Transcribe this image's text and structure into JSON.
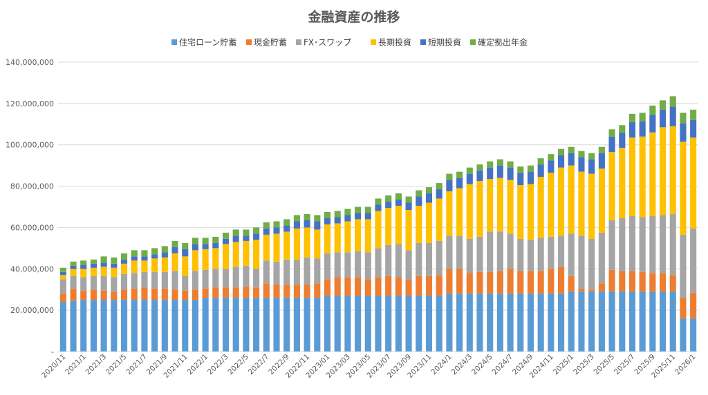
{
  "chart_data": {
    "type": "bar",
    "stacked": true,
    "title": "金融資産の推移",
    "xlabel": "",
    "ylabel": "",
    "ylim": [
      0,
      140000000
    ],
    "yticks": [
      0,
      20000000,
      40000000,
      60000000,
      80000000,
      100000000,
      120000000,
      140000000
    ],
    "ytick_labels": [
      "-",
      "20,000,000",
      "40,000,000",
      "60,000,000",
      "80,000,000",
      "100,000,000",
      "120,000,000",
      "140,000,000"
    ],
    "grid": true,
    "legend_position": "top",
    "categories": [
      "2020/11",
      "2020/12",
      "2021/1",
      "2021/2",
      "2021/3",
      "2021/4",
      "2021/5",
      "2021/6",
      "2021/7",
      "2021/8",
      "2021/9",
      "2021/10",
      "2021/11",
      "2021/12",
      "2022/1",
      "2022/2",
      "2022/3",
      "2022/4",
      "2022/5",
      "2022/6",
      "2022/7",
      "2022/8",
      "2022/9",
      "2022/10",
      "2022/11",
      "2022/12",
      "2023/01",
      "2023/02",
      "2023/03",
      "2023/04",
      "2023/05",
      "2023/06",
      "2023/07",
      "2023/08",
      "2023/09",
      "2023/10",
      "2023/11",
      "2023/12",
      "2024/1",
      "2024/2",
      "2024/3",
      "2024/4",
      "2024/5",
      "2024/6",
      "2024/7",
      "2024/8",
      "2024/9",
      "2024/10",
      "2024/11",
      "2024/12",
      "2025/1",
      "2025/2",
      "2025/3",
      "2025/4",
      "2025/5",
      "2025/6",
      "2025/7",
      "2025/8",
      "2025/9",
      "2025/10",
      "2025/11",
      "2025/12",
      "2026/1"
    ],
    "series": [
      {
        "name": "住宅ローン貯蓄",
        "color": "#5b9bd5",
        "values": [
          24,
          24.5,
          25,
          25,
          25,
          25,
          25,
          25,
          25,
          25,
          25,
          25,
          25,
          25,
          26,
          26,
          26,
          26,
          26,
          26,
          26,
          26,
          26,
          26,
          26,
          26,
          27,
          27,
          27,
          27,
          27,
          27,
          27,
          27,
          27,
          27,
          27,
          27,
          28,
          28,
          28,
          28,
          28,
          28,
          28,
          28,
          28,
          28,
          28,
          28,
          29,
          29,
          29,
          29,
          29,
          29,
          29,
          29,
          29,
          29,
          29,
          16,
          16
        ]
      },
      {
        "name": "現金貯蓄",
        "color": "#ed7d31",
        "values": [
          4,
          6,
          4.5,
          5,
          4.5,
          4,
          5,
          5.5,
          6,
          5.5,
          5.5,
          5,
          4.5,
          5,
          4.5,
          5,
          5,
          5,
          5.5,
          5,
          7,
          6.5,
          6.5,
          6.5,
          6.5,
          7,
          8,
          9,
          9,
          9,
          8,
          9,
          9.5,
          9,
          7.5,
          9.5,
          9.5,
          10,
          12,
          12,
          10,
          10.5,
          10.5,
          11,
          12,
          11,
          11,
          11,
          12,
          13,
          7.5,
          1.5,
          1,
          4,
          10.5,
          10,
          10,
          9.5,
          9,
          9,
          8,
          10,
          12.5
        ]
      },
      {
        "name": "FX･スワップ",
        "color": "#a5a5a5",
        "values": [
          7,
          6,
          6.5,
          6.5,
          7,
          7,
          7.5,
          7.5,
          7.5,
          8,
          8,
          9,
          7,
          9,
          9,
          9,
          9,
          10,
          10,
          9,
          11,
          11,
          12,
          12,
          13,
          12,
          12.5,
          12,
          12,
          12.5,
          13,
          14,
          15,
          16,
          14.5,
          16,
          16,
          16.5,
          16,
          16,
          16.5,
          17,
          19.5,
          19,
          17,
          15.5,
          15,
          16,
          15.5,
          15,
          20.5,
          25.5,
          24.5,
          24.5,
          24,
          25.5,
          26.5,
          26.5,
          27.5,
          28,
          29.5,
          30.5,
          31
        ]
      },
      {
        "name": "長期投資",
        "color": "#ffc000",
        "values": [
          2,
          3.5,
          4,
          4,
          4.5,
          4.5,
          5,
          6,
          5.5,
          6.5,
          7,
          8.5,
          9.5,
          10,
          10,
          10,
          12,
          12,
          12,
          14,
          12.5,
          13.5,
          13.5,
          15,
          14.5,
          14,
          14,
          14,
          15,
          15.5,
          16,
          18,
          18,
          18.5,
          19.5,
          18,
          19.5,
          20.5,
          21.5,
          23,
          26.5,
          27,
          25.5,
          26,
          26,
          26,
          27,
          29.5,
          31,
          33,
          33,
          31,
          31.5,
          31,
          33,
          34,
          38,
          39,
          40.5,
          42.5,
          42.5,
          45,
          44
        ]
      },
      {
        "name": "短期投資",
        "color": "#4472c4",
        "values": [
          1.5,
          1.5,
          2,
          2,
          2,
          2,
          2,
          2,
          2,
          2,
          2.5,
          3,
          3.5,
          3,
          2.5,
          2.5,
          2.5,
          3,
          2.5,
          3,
          3,
          3,
          3,
          3.5,
          3.5,
          4,
          3,
          3,
          3,
          3,
          3,
          3,
          3,
          3,
          3.5,
          4.5,
          4.5,
          4.5,
          5.5,
          5,
          5,
          5,
          5.5,
          6,
          6,
          6,
          6,
          6,
          6,
          6,
          6,
          7,
          7,
          7.5,
          7.5,
          7.5,
          7.5,
          7.5,
          8.5,
          8.5,
          9.5,
          9,
          8.5
        ]
      },
      {
        "name": "確定拠出年金",
        "color": "#70ad47",
        "values": [
          2,
          2,
          2,
          2,
          3,
          3,
          3,
          3,
          3,
          3,
          3,
          3,
          3,
          3,
          3,
          3,
          3,
          3,
          3,
          3,
          3,
          3,
          3,
          3,
          3,
          3,
          3,
          3,
          3,
          3,
          3,
          3,
          3,
          3,
          3,
          3,
          3,
          3,
          3,
          3,
          3,
          3,
          3,
          3,
          3,
          3,
          3,
          3,
          3,
          3,
          3,
          3,
          3,
          3,
          3.5,
          3.5,
          4,
          4,
          4.5,
          4.5,
          5,
          5,
          5
        ]
      }
    ]
  }
}
